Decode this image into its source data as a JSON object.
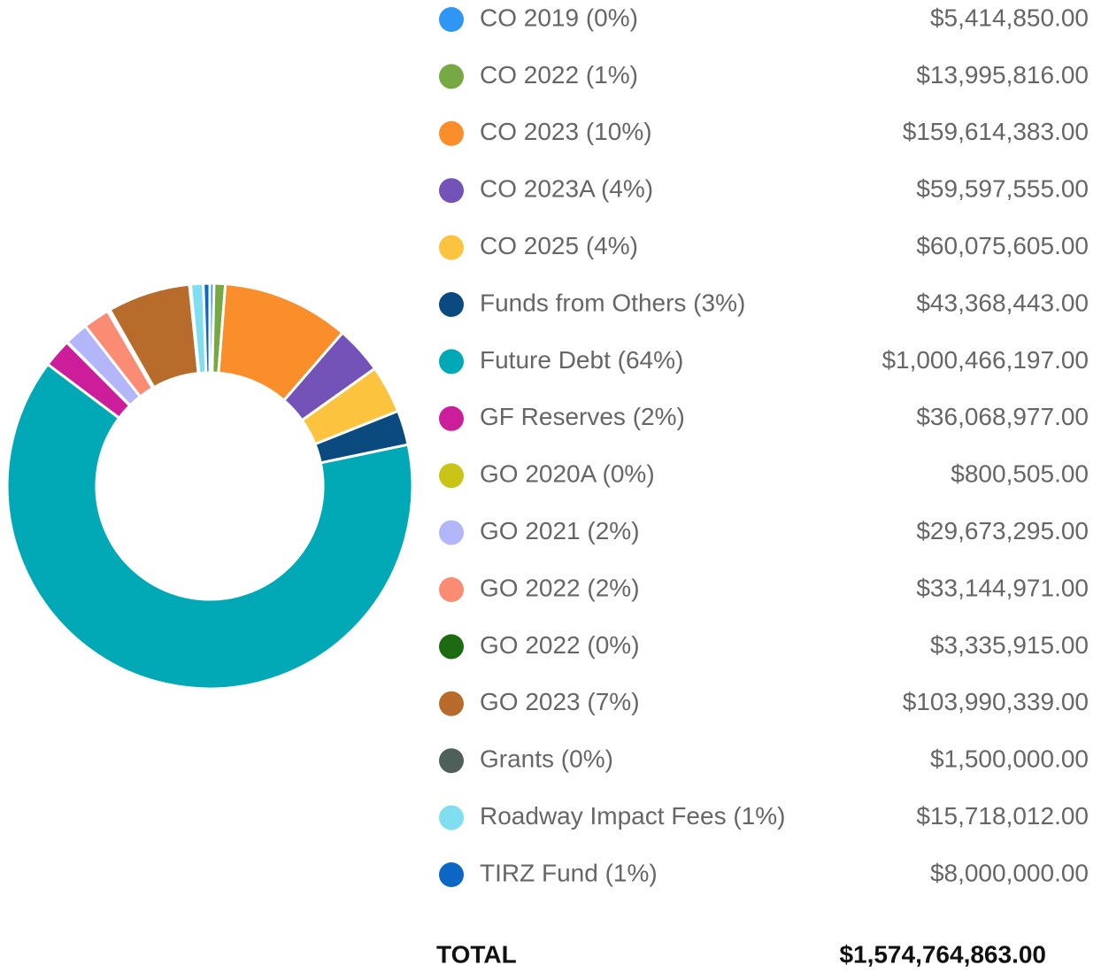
{
  "chart_data": {
    "type": "donut",
    "categories": [
      "CO 2019 (0%)",
      "CO 2022 (1%)",
      "CO 2023 (10%)",
      "CO 2023A (4%)",
      "CO 2025 (4%)",
      "Funds from Others (3%)",
      "Future Debt (64%)",
      "GF Reserves (2%)",
      "GO 2020A (0%)",
      "GO 2021 (2%)",
      "GO 2022 (2%)",
      "GO 2022 (0%)",
      "GO 2023 (7%)",
      "Grants (0%)",
      "Roadway Impact Fees (1%)",
      "TIRZ Fund (1%)"
    ],
    "values": [
      5414850,
      13995816,
      159614383,
      59597555,
      60075605,
      43368443,
      1000466197,
      36068977,
      800505,
      29673295,
      33144971,
      3335915,
      103990339,
      1500000,
      15718012,
      8000000
    ],
    "value_labels": [
      "$5,414,850.00",
      "$13,995,816.00",
      "$159,614,383.00",
      "$59,597,555.00",
      "$60,075,605.00",
      "$43,368,443.00",
      "$1,000,466,197.00",
      "$36,068,977.00",
      "$800,505.00",
      "$29,673,295.00",
      "$33,144,971.00",
      "$3,335,915.00",
      "$103,990,339.00",
      "$1,500,000.00",
      "$15,718,012.00",
      "$8,000,000.00"
    ],
    "colors": [
      "#2f96f3",
      "#76a843",
      "#f98e2b",
      "#7353b8",
      "#fbc33e",
      "#0a4a7e",
      "#00a9b5",
      "#cc1d9b",
      "#c8c516",
      "#b4b6fa",
      "#fb8c74",
      "#1c6b13",
      "#b76c2c",
      "#4f5f5a",
      "#7fdff0",
      "#0c66c4"
    ],
    "total_label": "TOTAL",
    "total": "$1,574,764,863.00"
  }
}
